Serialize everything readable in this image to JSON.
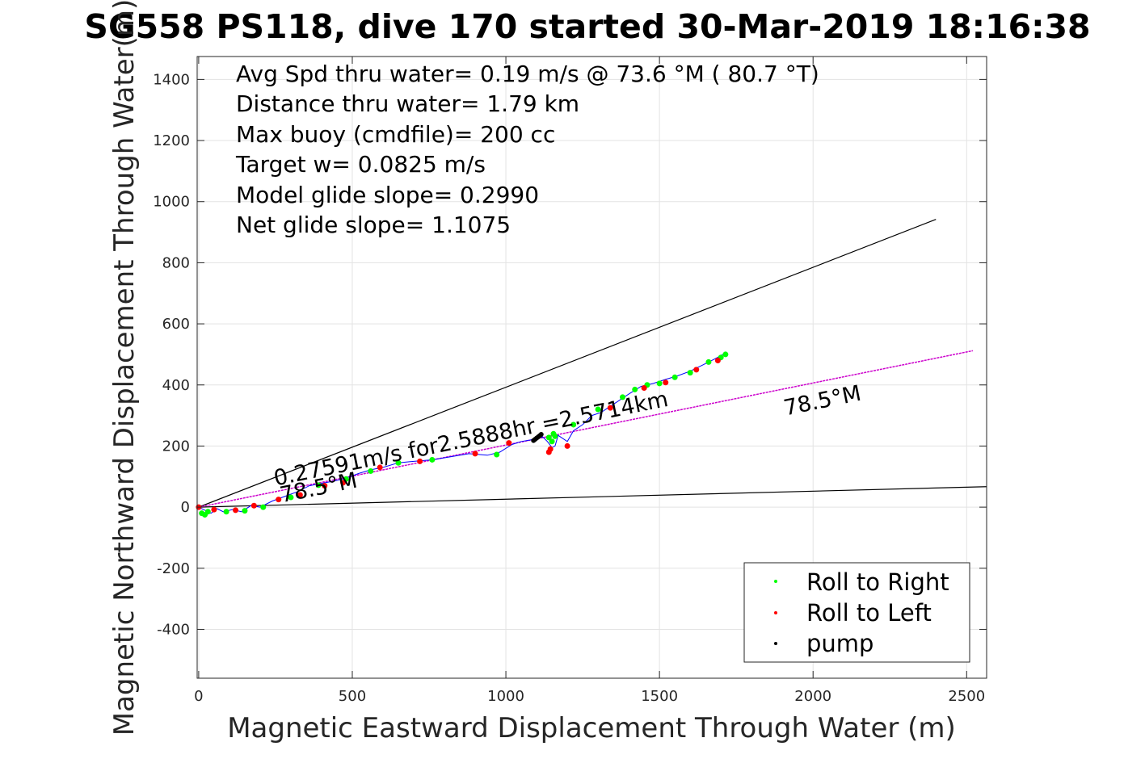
{
  "chart_data": {
    "type": "line",
    "title": "SG558 PS118, dive 170 started 30-Mar-2019 18:16:38",
    "xlabel": "Magnetic Eastward Displacement Through Water (m)",
    "ylabel": "Magnetic Northward Displacement Through Water(m)",
    "xlim": [
      -5,
      2565
    ],
    "ylim": [
      -560,
      1475
    ],
    "xticks": [
      0,
      500,
      1000,
      1500,
      2000,
      2500
    ],
    "yticks": [
      -400,
      -200,
      0,
      200,
      400,
      600,
      800,
      1000,
      1200,
      1400
    ],
    "xtick_labels": [
      "0",
      "500",
      "1000",
      "1500",
      "2000",
      "2500"
    ],
    "ytick_labels": [
      "-400",
      "-200",
      "0",
      "200",
      "400",
      "600",
      "800",
      "1000",
      "1200",
      "1400"
    ],
    "grid": true,
    "info_lines": [
      "Avg Spd thru water=  0.19 m/s @  73.6 °M ( 80.7 °T)",
      "Distance thru water=  1.79 km",
      "Max buoy (cmdfile)= 200 cc",
      "Target w= 0.0825 m/s",
      "Model glide slope= 0.2990",
      "Net glide slope= 1.1075"
    ],
    "annotations": [
      {
        "text": "0.27591m/s for2.5888hr =2.5714km",
        "x": 250,
        "y": 70,
        "angle_deg": 11.5
      },
      {
        "text": "78.5°M",
        "x": 270,
        "y": 15,
        "angle_deg": 11.5
      },
      {
        "text": "78.5°M",
        "x": 1910,
        "y": 300,
        "angle_deg": 11.5
      }
    ],
    "reference_lines": [
      {
        "name": "upper-bound",
        "color": "#000000",
        "x": [
          0,
          2400
        ],
        "y": [
          0,
          942
        ]
      },
      {
        "name": "lower-bound",
        "color": "#000000",
        "x": [
          0,
          2565
        ],
        "y": [
          0,
          67
        ]
      },
      {
        "name": "mean-heading",
        "color": "#cc00cc",
        "x": [
          0,
          2520
        ],
        "y": [
          0,
          512
        ]
      }
    ],
    "track": {
      "color": "#0000ff",
      "x": [
        0,
        20,
        40,
        60,
        80,
        110,
        140,
        170,
        200,
        240,
        280,
        320,
        360,
        400,
        440,
        480,
        520,
        560,
        600,
        650,
        700,
        760,
        820,
        880,
        940,
        980,
        1020,
        1050,
        1080,
        1100,
        1120,
        1135,
        1150,
        1160,
        1170,
        1200,
        1220,
        1250,
        1280,
        1310,
        1340,
        1370,
        1400,
        1440,
        1480,
        1520,
        1560,
        1600,
        1640,
        1680,
        1715
      ],
      "y": [
        0,
        -10,
        -20,
        -5,
        -15,
        -8,
        -15,
        5,
        0,
        20,
        35,
        50,
        70,
        78,
        85,
        95,
        110,
        122,
        130,
        145,
        150,
        155,
        165,
        175,
        170,
        180,
        205,
        215,
        220,
        225,
        230,
        215,
        195,
        200,
        235,
        215,
        250,
        270,
        300,
        310,
        330,
        350,
        370,
        395,
        405,
        418,
        430,
        445,
        465,
        485,
        505
      ]
    },
    "legend_position": "bottom-right",
    "series": [
      {
        "name": "Roll to Right",
        "color": "#00ff00",
        "marker": "dot",
        "x": [
          10,
          20,
          30,
          90,
          150,
          210,
          300,
          390,
          480,
          560,
          650,
          760,
          970,
          1140,
          1150,
          1155,
          1160,
          1220,
          1300,
          1380,
          1420,
          1460,
          1500,
          1550,
          1600,
          1660,
          1700,
          1715
        ],
        "y": [
          -20,
          -25,
          -15,
          -15,
          -12,
          0,
          32,
          72,
          92,
          118,
          145,
          155,
          172,
          228,
          215,
          240,
          232,
          270,
          320,
          360,
          385,
          400,
          405,
          425,
          440,
          475,
          490,
          500
        ]
      },
      {
        "name": "Roll to Left",
        "color": "#ff0000",
        "marker": "dot",
        "x": [
          0,
          50,
          120,
          180,
          260,
          330,
          410,
          470,
          590,
          720,
          900,
          1010,
          1140,
          1145,
          1200,
          1340,
          1450,
          1520,
          1620,
          1690
        ],
        "y": [
          0,
          -8,
          -10,
          5,
          25,
          40,
          70,
          80,
          130,
          150,
          175,
          210,
          180,
          190,
          200,
          325,
          390,
          408,
          450,
          480
        ]
      },
      {
        "name": "pump",
        "color": "#000000",
        "marker": "dot",
        "x": [
          1090,
          1095,
          1100,
          1105,
          1110,
          1115
        ],
        "y": [
          218,
          222,
          226,
          230,
          234,
          238
        ]
      }
    ]
  }
}
